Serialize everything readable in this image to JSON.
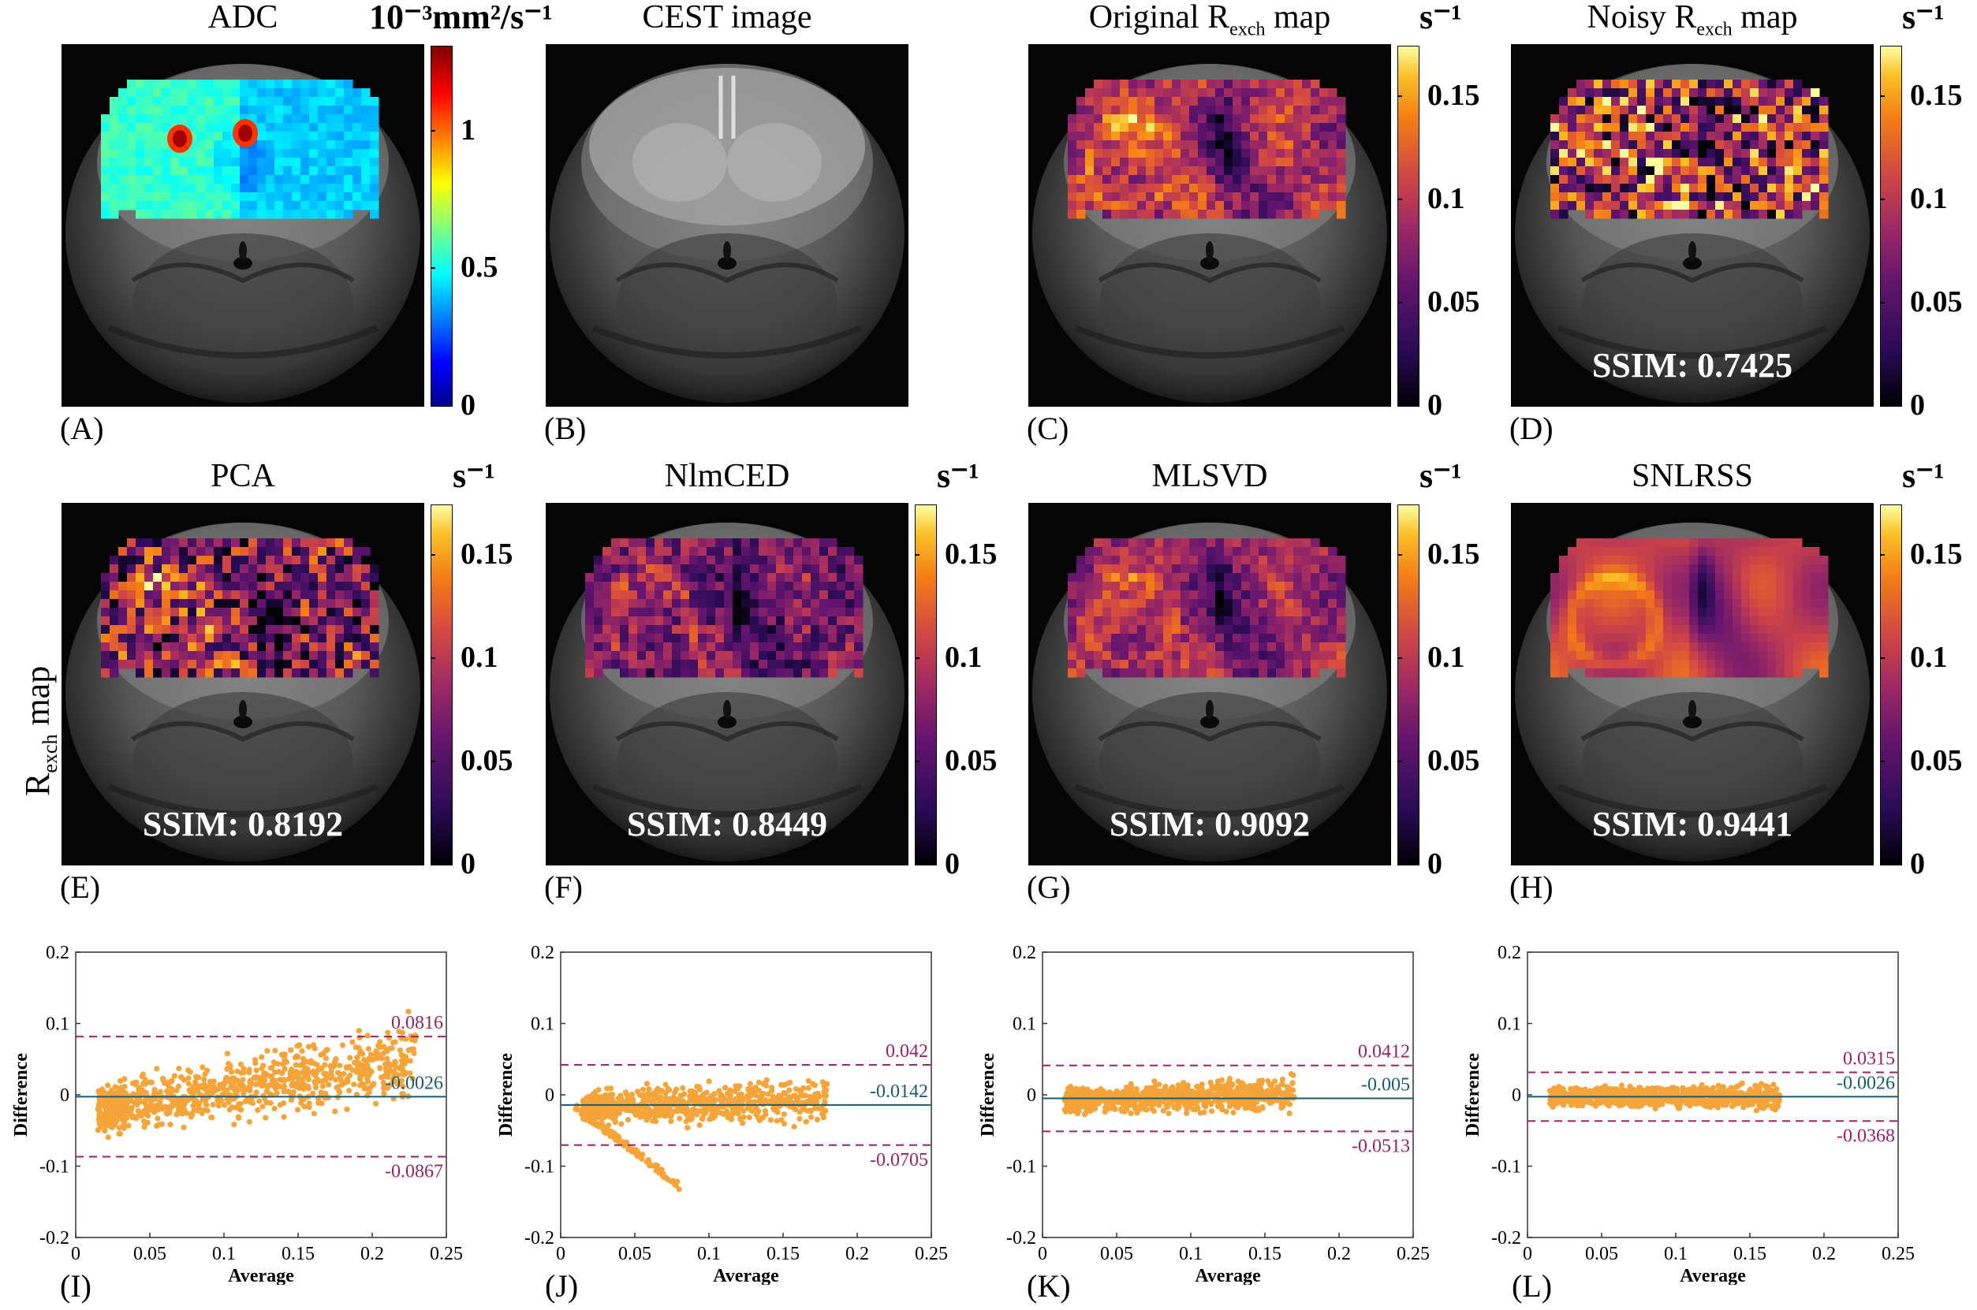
{
  "row_label": {
    "main": "R",
    "sub": "exch",
    "tail": " map"
  },
  "panels": [
    {
      "id": "A",
      "label": "(A)",
      "title": {
        "pre": "ADC",
        "sub": "",
        "post": ""
      },
      "ssim": "",
      "colormap": "jet",
      "unit": "10⁻³mm²/s⁻¹",
      "ticks": [
        "1",
        "0.5",
        "0"
      ],
      "lesions": true
    },
    {
      "id": "B",
      "label": "(B)",
      "title": {
        "pre": "CEST image",
        "sub": "",
        "post": ""
      },
      "ssim": "",
      "colormap": "none",
      "unit": "",
      "ticks": [],
      "lesions": false
    },
    {
      "id": "C",
      "label": "(C)",
      "title": {
        "pre": "Original R",
        "sub": "exch",
        "post": " map"
      },
      "ssim": "",
      "colormap": "inferno",
      "unit": "s⁻¹",
      "ticks": [
        "0.15",
        "0.1",
        "0.05",
        "0"
      ],
      "texture": "original"
    },
    {
      "id": "D",
      "label": "(D)",
      "title": {
        "pre": "Noisy R",
        "sub": "exch",
        "post": " map"
      },
      "ssim": "SSIM: 0.7425",
      "colormap": "inferno",
      "unit": "s⁻¹",
      "ticks": [
        "0.15",
        "0.1",
        "0.05",
        "0"
      ],
      "texture": "noisy"
    },
    {
      "id": "E",
      "label": "(E)",
      "title": {
        "pre": "PCA",
        "sub": "",
        "post": ""
      },
      "ssim": "SSIM: 0.8192",
      "colormap": "inferno",
      "unit": "s⁻¹",
      "ticks": [
        "0.15",
        "0.1",
        "0.05",
        "0"
      ],
      "texture": "pca"
    },
    {
      "id": "F",
      "label": "(F)",
      "title": {
        "pre": "NlmCED",
        "sub": "",
        "post": ""
      },
      "ssim": "SSIM: 0.8449",
      "colormap": "inferno",
      "unit": "s⁻¹",
      "ticks": [
        "0.15",
        "0.1",
        "0.05",
        "0"
      ],
      "texture": "nlm"
    },
    {
      "id": "G",
      "label": "(G)",
      "title": {
        "pre": "MLSVD",
        "sub": "",
        "post": ""
      },
      "ssim": "SSIM: 0.9092",
      "colormap": "inferno",
      "unit": "s⁻¹",
      "ticks": [
        "0.15",
        "0.1",
        "0.05",
        "0"
      ],
      "texture": "mlsvd"
    },
    {
      "id": "H",
      "label": "(H)",
      "title": {
        "pre": "SNLRSS",
        "sub": "",
        "post": ""
      },
      "ssim": "SSIM: 0.9441",
      "colormap": "inferno",
      "unit": "s⁻¹",
      "ticks": [
        "0.15",
        "0.1",
        "0.05",
        "0"
      ],
      "texture": "smooth"
    }
  ],
  "colors": {
    "scatter": "#f5a43a",
    "mean_line": "#1a5a72",
    "loa_line": "#9b2267",
    "loa_text": "#9b2267",
    "mean_text": "#1a5a72"
  },
  "chart_data": [
    {
      "id": "I",
      "label": "(I)",
      "type": "scatter",
      "title": "",
      "xlabel": "Average",
      "ylabel": "Difference",
      "xlim": [
        0,
        0.25
      ],
      "ylim": [
        -0.2,
        0.2
      ],
      "xticks": [
        "0",
        "0.05",
        "0.1",
        "0.15",
        "0.2",
        "0.25"
      ],
      "yticks": [
        "0.2",
        "0.1",
        "0",
        "-0.1",
        "-0.2"
      ],
      "upper_loa": 0.0816,
      "mean": -0.0026,
      "lower_loa": -0.0867,
      "upper_label": "0.0816",
      "mean_label": "-0.0026",
      "lower_label": "-0.0867",
      "point_cloud": {
        "x_range": [
          0.0,
          0.23
        ],
        "spread": 0.045,
        "trend": 0.55,
        "n": 900
      }
    },
    {
      "id": "J",
      "label": "(J)",
      "type": "scatter",
      "title": "",
      "xlabel": "Average",
      "ylabel": "Difference",
      "xlim": [
        0,
        0.25
      ],
      "ylim": [
        -0.2,
        0.2
      ],
      "xticks": [
        "0",
        "0.05",
        "0.1",
        "0.15",
        "0.2",
        "0.25"
      ],
      "yticks": [
        "0.2",
        "0.1",
        "0",
        "-0.1",
        "-0.2"
      ],
      "upper_loa": 0.042,
      "mean": -0.0142,
      "lower_loa": -0.0705,
      "upper_label": "0.042",
      "mean_label": "-0.0142",
      "lower_label": "-0.0705",
      "point_cloud": {
        "x_range": [
          0.0,
          0.18
        ],
        "spread": 0.028,
        "trend": 0.1,
        "n": 900
      }
    },
    {
      "id": "K",
      "label": "(K)",
      "type": "scatter",
      "title": "",
      "xlabel": "Average",
      "ylabel": "Difference",
      "xlim": [
        0,
        0.25
      ],
      "ylim": [
        -0.2,
        0.2
      ],
      "xticks": [
        "0",
        "0.05",
        "0.1",
        "0.15",
        "0.2",
        "0.25"
      ],
      "yticks": [
        "0.2",
        "0.1",
        "0",
        "-0.1",
        "-0.2"
      ],
      "upper_loa": 0.0412,
      "mean": -0.005,
      "lower_loa": -0.0513,
      "upper_label": "0.0412",
      "mean_label": "-0.005",
      "lower_label": "-0.0513",
      "point_cloud": {
        "x_range": [
          0.0,
          0.17
        ],
        "spread": 0.022,
        "trend": 0.1,
        "n": 900
      }
    },
    {
      "id": "L",
      "label": "(L)",
      "type": "scatter",
      "title": "",
      "xlabel": "Average",
      "ylabel": "Difference",
      "xlim": [
        0,
        0.25
      ],
      "ylim": [
        -0.2,
        0.2
      ],
      "xticks": [
        "0",
        "0.05",
        "0.1",
        "0.15",
        "0.2",
        "0.25"
      ],
      "yticks": [
        "0.2",
        "0.1",
        "0",
        "-0.1",
        "-0.2"
      ],
      "upper_loa": 0.0315,
      "mean": -0.0026,
      "lower_loa": -0.0368,
      "upper_label": "0.0315",
      "mean_label": "-0.0026",
      "lower_label": "-0.0368",
      "point_cloud": {
        "x_range": [
          0.01,
          0.17
        ],
        "spread": 0.016,
        "trend": 0.0,
        "n": 900
      }
    }
  ]
}
